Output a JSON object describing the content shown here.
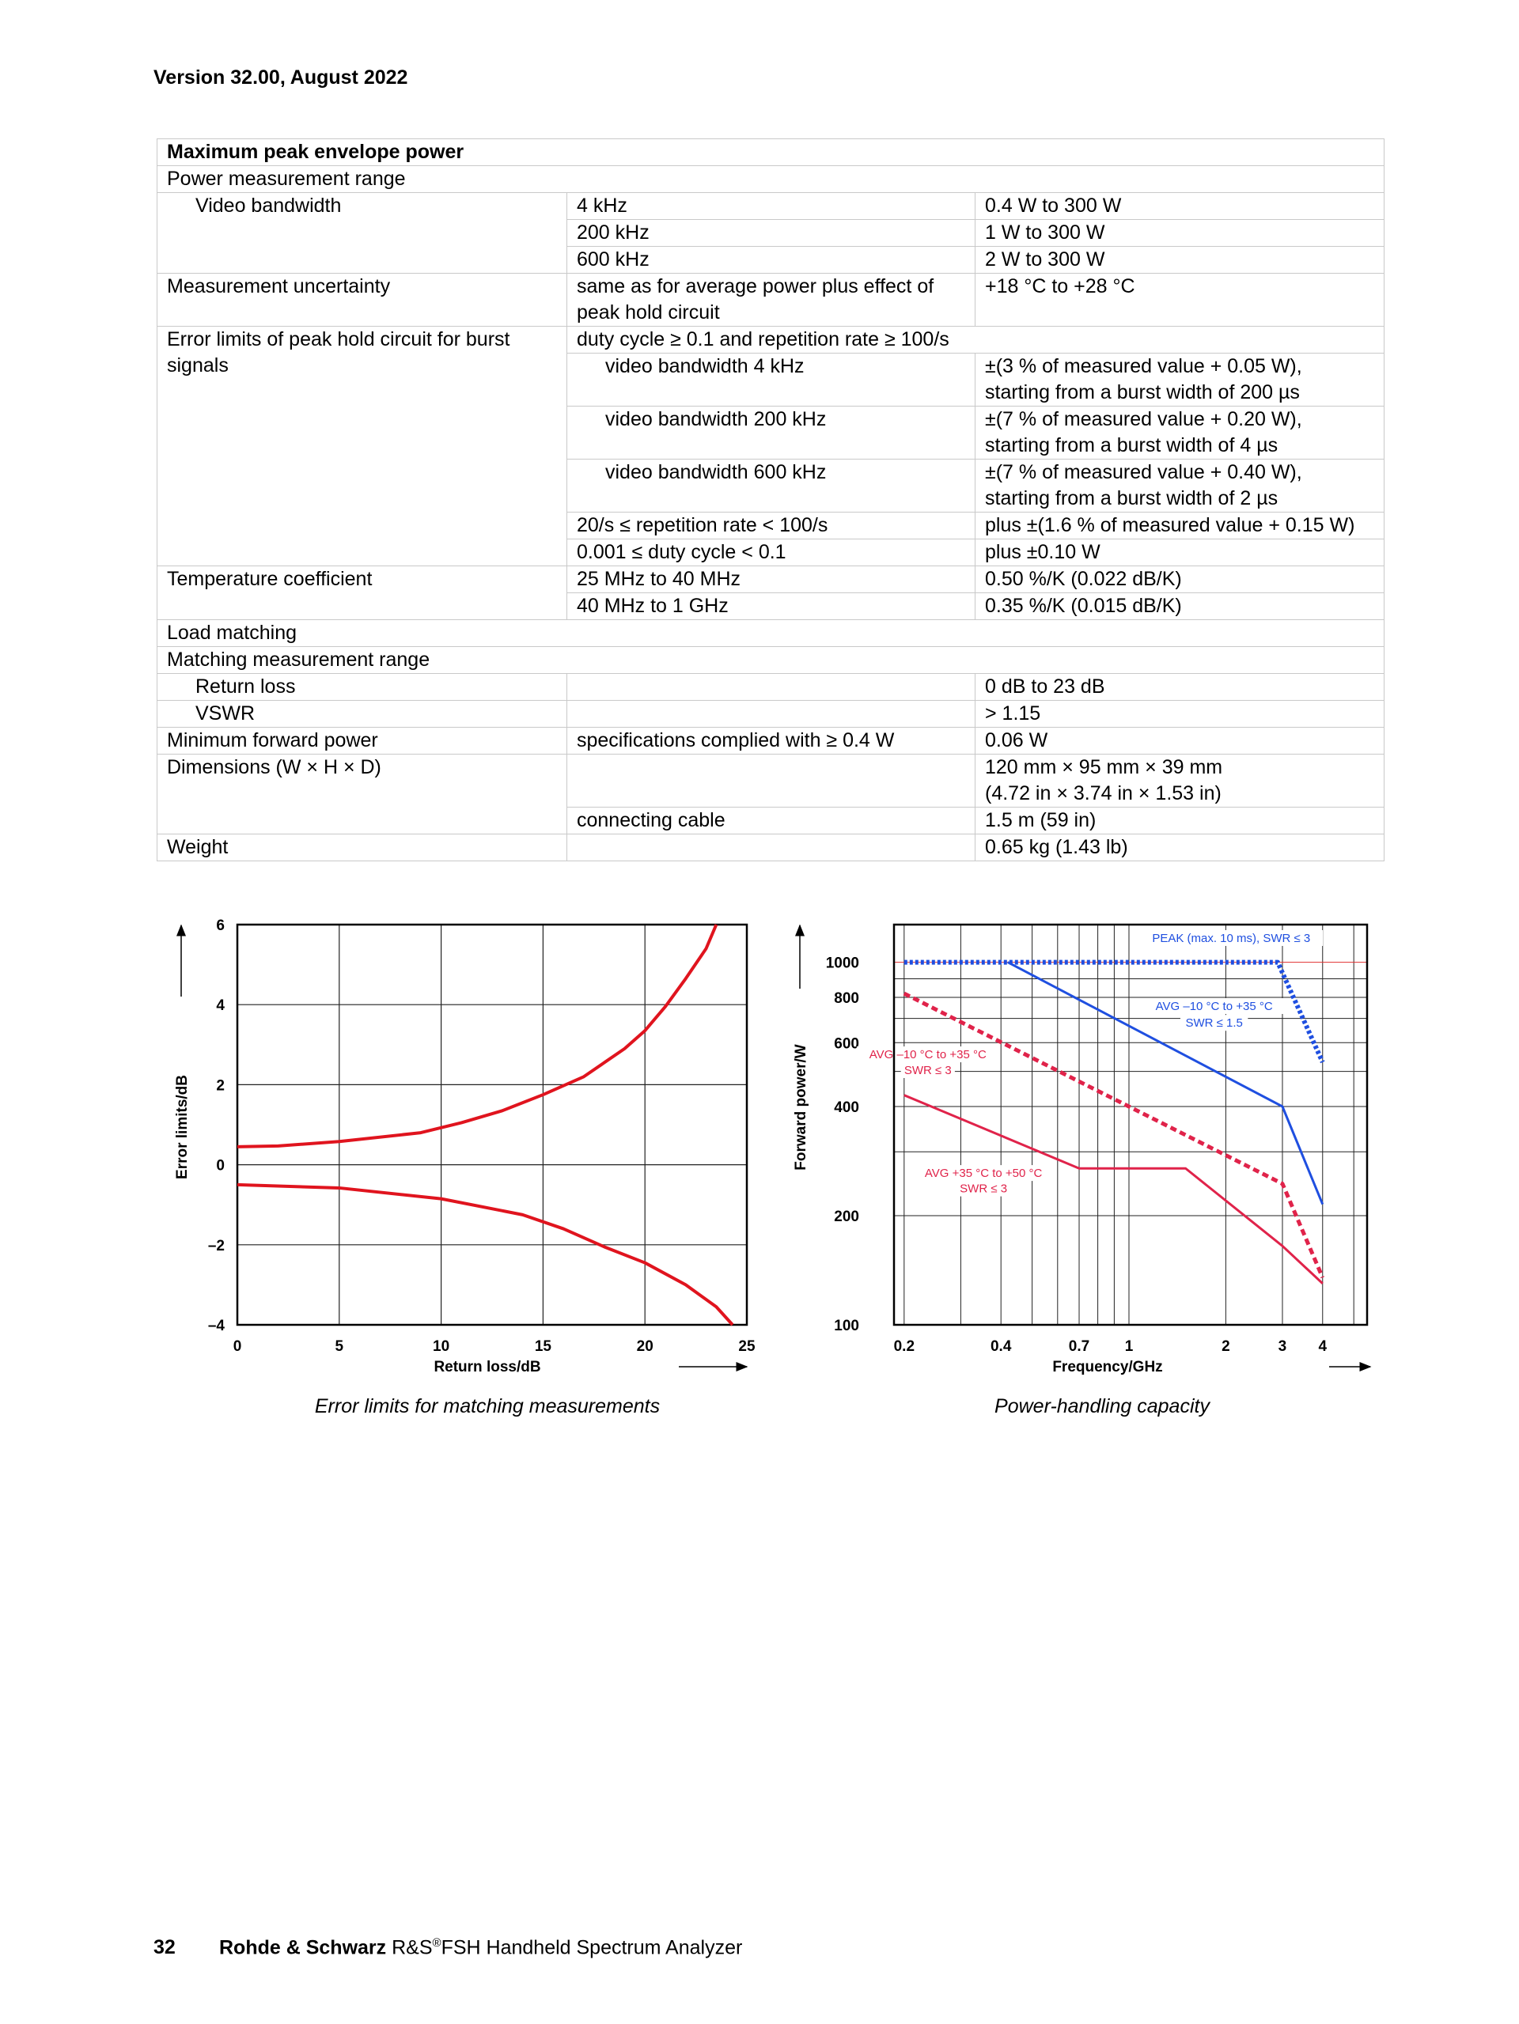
{
  "header": {
    "version": "Version 32.00, August 2022"
  },
  "table": {
    "rows": [
      [
        "Maximum peak envelope power"
      ],
      [
        "Power measurement range"
      ],
      [
        "Video bandwidth",
        "4 kHz",
        "0.4 W to 300 W"
      ],
      [
        "200 kHz",
        "1 W to 300 W"
      ],
      [
        "600 kHz",
        "2 W to 300 W"
      ],
      [
        "Measurement uncertainty",
        "same as for average power plus effect of peak hold circuit",
        "+18 °C to +28 °C"
      ],
      [
        "Error limits of peak hold circuit for burst signals",
        "duty cycle ≥ 0.1 and repetition rate ≥ 100/s"
      ],
      [
        "video bandwidth 4 kHz",
        "±(3 % of measured value + 0.05 W),",
        "starting from a burst width of 200 µs"
      ],
      [
        "video bandwidth 200 kHz",
        "±(7 % of measured value + 0.20 W),",
        "starting from a burst width of 4 µs"
      ],
      [
        "video bandwidth 600 kHz",
        "±(7 % of measured value + 0.40 W),",
        "starting from a burst width of 2 µs"
      ],
      [
        "20/s ≤ repetition rate < 100/s",
        "plus ±(1.6 % of measured value + 0.15 W)"
      ],
      [
        "0.001 ≤ duty cycle < 0.1",
        "plus ±0.10 W"
      ],
      [
        "Temperature coefficient",
        "25 MHz to 40 MHz",
        "0.50 %/K (0.022 dB/K)"
      ],
      [
        "40 MHz to 1 GHz",
        "0.35 %/K (0.015 dB/K)"
      ],
      [
        "Load matching"
      ],
      [
        "Matching measurement range"
      ],
      [
        "Return loss",
        "",
        "0 dB to 23 dB"
      ],
      [
        "VSWR",
        "",
        "> 1.15"
      ],
      [
        "Minimum forward power",
        "specifications complied with ≥ 0.4 W",
        "0.06 W"
      ],
      [
        "Dimensions (W × H × D)",
        "",
        "120 mm × 95 mm × 39 mm",
        "(4.72 in × 3.74 in × 1.53 in)"
      ],
      [
        "connecting cable",
        "1.5 m (59 in)"
      ],
      [
        "Weight",
        "",
        "0.65 kg (1.43 lb)"
      ]
    ]
  },
  "chart_data": [
    {
      "type": "line",
      "title": "Error limits for matching measurements",
      "xlabel": "Return loss/dB",
      "ylabel": "Error limits/dB",
      "xlim": [
        0,
        25
      ],
      "ylim": [
        -4,
        6
      ],
      "grid": true,
      "xticks": [
        0,
        5,
        10,
        15,
        20,
        25
      ],
      "xtick_labels": [
        "0",
        "5",
        "10",
        "15",
        "20",
        "25"
      ],
      "yticks": [
        -4,
        -2,
        0,
        2,
        4,
        6
      ],
      "ytick_labels": [
        "–4",
        "–2",
        "0",
        "2",
        "4",
        "6"
      ],
      "color": "#e0141e",
      "series": [
        {
          "name": "upper limit",
          "x": [
            0,
            2,
            5,
            9,
            11,
            13,
            15,
            17,
            19,
            20,
            21,
            22,
            23,
            23.5
          ],
          "y": [
            0.45,
            0.47,
            0.58,
            0.8,
            1.05,
            1.35,
            1.75,
            2.2,
            2.9,
            3.35,
            3.95,
            4.65,
            5.4,
            6
          ]
        },
        {
          "name": "lower limit",
          "x": [
            0,
            5,
            10,
            14,
            16,
            18,
            20,
            22,
            23.5,
            24.3
          ],
          "y": [
            -0.5,
            -0.58,
            -0.85,
            -1.25,
            -1.6,
            -2.05,
            -2.45,
            -3.0,
            -3.55,
            -4
          ]
        }
      ]
    },
    {
      "type": "line",
      "title": "Power-handling capacity",
      "xlabel": "Frequency/GHz",
      "ylabel": "Forward power/W",
      "xscale": "log",
      "yscale": "log",
      "xlim": [
        0.186,
        5.5
      ],
      "ylim": [
        100,
        1270
      ],
      "grid": true,
      "xgrid": [
        0.2,
        0.3,
        0.4,
        0.5,
        0.6,
        0.7,
        0.8,
        0.9,
        1,
        2,
        3,
        4,
        5
      ],
      "ygrid": [
        100,
        200,
        300,
        400,
        500,
        600,
        700,
        800,
        900,
        1000
      ],
      "xticks": [
        0.2,
        0.4,
        0.7,
        1,
        2,
        3,
        4
      ],
      "xtick_labels": [
        "0.2",
        "0.4",
        "0.7",
        "1",
        "2",
        "3",
        "4"
      ],
      "yticks": [
        100,
        200,
        400,
        600,
        800,
        1000
      ],
      "ytick_labels": [
        "100",
        "200",
        "400",
        "600",
        "800",
        "1000"
      ],
      "series": [
        {
          "name": "PEAK (max. 10 ms), SWR ≤ 3",
          "color": "#1f4fe0",
          "style": "dotted",
          "x": [
            0.2,
            2.9,
            4
          ],
          "y": [
            1000,
            1000,
            530
          ]
        },
        {
          "name": "AVG –10 °C to +35 °C, SWR ≤ 1.5",
          "color": "#1f4fe0",
          "style": "solid",
          "x": [
            0.42,
            3,
            4
          ],
          "y": [
            1000,
            400,
            215
          ]
        },
        {
          "name": "AVG –10 °C to +35 °C, SWR ≤ 3",
          "color": "#e0234a",
          "style": "dashed",
          "x": [
            0.2,
            3,
            4
          ],
          "y": [
            820,
            245,
            135
          ]
        },
        {
          "name": "AVG +35 °C to +50 °C, SWR ≤ 3",
          "color": "#e0234a",
          "style": "solid",
          "x": [
            0.2,
            0.7,
            1.5,
            3,
            4
          ],
          "y": [
            430,
            270,
            270,
            165,
            130
          ]
        }
      ],
      "annotations": [
        {
          "lines": [
            "PEAK (max. 10 ms), SWR ≤ 3"
          ],
          "x": 2.08,
          "y": [
            1143
          ],
          "color": "#1f4fe0"
        },
        {
          "lines": [
            "AVG –10 °C to +35 °C",
            "SWR ≤ 1.5"
          ],
          "x": 1.84,
          "y": [
            742,
            667
          ],
          "color": "#1f4fe0"
        },
        {
          "lines": [
            "AVG –10 °C to +35 °C",
            "SWR ≤ 3"
          ],
          "x": 0.237,
          "y": [
            546,
            494
          ],
          "color": "#e0234a"
        },
        {
          "lines": [
            "AVG +35 °C to +50 °C",
            "SWR ≤ 3"
          ],
          "x": 0.353,
          "y": [
            257,
            233
          ],
          "color": "#e0234a"
        }
      ]
    }
  ],
  "footer": {
    "page_number": "32",
    "brand": "Rohde & Schwarz",
    "product_prefix": "R&S",
    "reg": "®",
    "product": "FSH Handheld Spectrum Analyzer"
  }
}
